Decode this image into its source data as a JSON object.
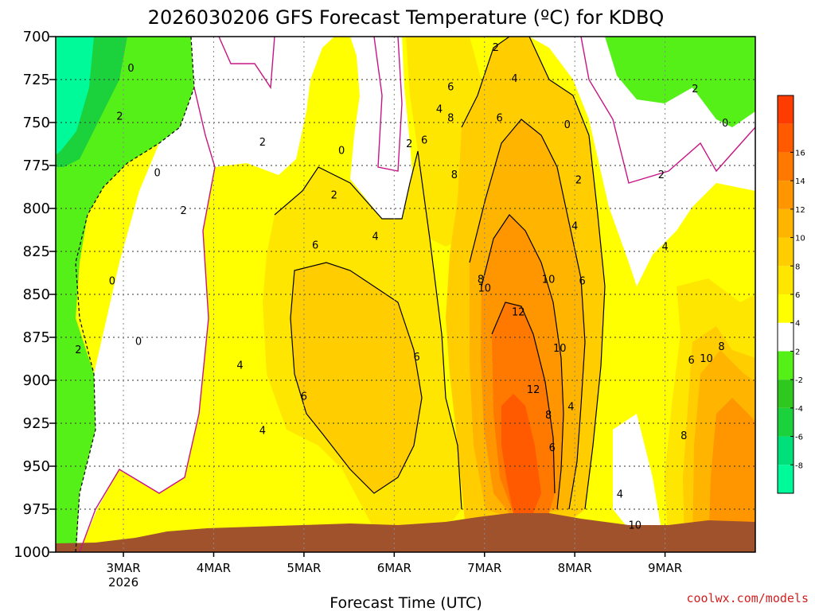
{
  "chart_data": {
    "type": "heatmap",
    "title": "2026030206 GFS Forecast Temperature (ºC) for KDBQ",
    "xlabel": "Forecast Time (UTC)",
    "ylabel": "",
    "y_ticks": [
      "700",
      "725",
      "750",
      "775",
      "800",
      "825",
      "850",
      "875",
      "900",
      "925",
      "950",
      "975",
      "1000"
    ],
    "y_range": [
      700,
      1000
    ],
    "y_inverted": true,
    "x_ticks": [
      {
        "label": "3MAR",
        "sublabel": "2026",
        "time_h": 6
      },
      {
        "label": "4MAR",
        "time_h": 30
      },
      {
        "label": "5MAR",
        "time_h": 54
      },
      {
        "label": "6MAR",
        "time_h": 78
      },
      {
        "label": "7MAR",
        "time_h": 102
      },
      {
        "label": "8MAR",
        "time_h": 126
      },
      {
        "label": "9MAR",
        "time_h": 150
      }
    ],
    "x_range_h": [
      -12,
      174
    ],
    "grid": true,
    "colorbar": {
      "levels": [
        -10,
        -8,
        -6,
        -4,
        -2,
        2,
        4,
        6,
        8,
        10,
        12,
        14,
        16,
        18
      ],
      "colors": [
        "#00fa9a",
        "#00e07a",
        "#1bd23c",
        "#2ec81e",
        "#55f018",
        "#ffffff",
        "#ffff00",
        "#ffe600",
        "#ffcd00",
        "#ffb400",
        "#ff9600",
        "#ff7800",
        "#ff5a00",
        "#ff3c00"
      ],
      "labels": [
        "-8",
        "-6",
        "-4",
        "-2",
        "2",
        "4",
        "6",
        "8",
        "10",
        "12",
        "14",
        "16"
      ]
    },
    "contour_labels": [
      {
        "t": 8,
        "p": 718,
        "v": "0"
      },
      {
        "t": 93,
        "p": 729,
        "v": "6"
      },
      {
        "t": 90,
        "p": 742,
        "v": "4"
      },
      {
        "t": 93,
        "p": 747,
        "v": "8"
      },
      {
        "t": 105,
        "p": 706,
        "v": "2"
      },
      {
        "t": 110,
        "p": 724,
        "v": "4"
      },
      {
        "t": 106,
        "p": 747,
        "v": "6"
      },
      {
        "t": 124,
        "p": 751,
        "v": "0"
      },
      {
        "t": 158,
        "p": 730,
        "v": "2"
      },
      {
        "t": 166,
        "p": 750,
        "v": "0"
      },
      {
        "t": 5,
        "p": 746,
        "v": "2"
      },
      {
        "t": 43,
        "p": 761,
        "v": "2"
      },
      {
        "t": 64,
        "p": 766,
        "v": "0"
      },
      {
        "t": 82,
        "p": 762,
        "v": "2"
      },
      {
        "t": 86,
        "p": 760,
        "v": "6"
      },
      {
        "t": 15,
        "p": 779,
        "v": "0"
      },
      {
        "t": 94,
        "p": 780,
        "v": "8"
      },
      {
        "t": 127,
        "p": 783,
        "v": "2"
      },
      {
        "t": 149,
        "p": 780,
        "v": "2"
      },
      {
        "t": 62,
        "p": 792,
        "v": "2"
      },
      {
        "t": 22,
        "p": 801,
        "v": "2"
      },
      {
        "t": 126,
        "p": 810,
        "v": "4"
      },
      {
        "t": 73,
        "p": 816,
        "v": "4"
      },
      {
        "t": 57,
        "p": 821,
        "v": "6"
      },
      {
        "t": 150,
        "p": 822,
        "v": "4"
      },
      {
        "t": 101,
        "p": 841,
        "v": "8"
      },
      {
        "t": 102,
        "p": 846,
        "v": "10"
      },
      {
        "t": 119,
        "p": 841,
        "v": "10"
      },
      {
        "t": 128,
        "p": 842,
        "v": "6"
      },
      {
        "t": 3,
        "p": 842,
        "v": "0"
      },
      {
        "t": 111,
        "p": 860,
        "v": "12"
      },
      {
        "t": 10,
        "p": 877,
        "v": "0"
      },
      {
        "t": -6,
        "p": 882,
        "v": "2"
      },
      {
        "t": 122,
        "p": 881,
        "v": "10"
      },
      {
        "t": 84,
        "p": 886,
        "v": "6"
      },
      {
        "t": 157,
        "p": 888,
        "v": "6"
      },
      {
        "t": 161,
        "p": 887,
        "v": "10"
      },
      {
        "t": 165,
        "p": 880,
        "v": "8"
      },
      {
        "t": 37,
        "p": 891,
        "v": "4"
      },
      {
        "t": 54,
        "p": 909,
        "v": "6"
      },
      {
        "t": 115,
        "p": 905,
        "v": "12"
      },
      {
        "t": 119,
        "p": 920,
        "v": "8"
      },
      {
        "t": 125,
        "p": 915,
        "v": "4"
      },
      {
        "t": 43,
        "p": 929,
        "v": "4"
      },
      {
        "t": 120,
        "p": 939,
        "v": "6"
      },
      {
        "t": 155,
        "p": 932,
        "v": "8"
      },
      {
        "t": 138,
        "p": 966,
        "v": "4"
      },
      {
        "t": 142,
        "p": 984,
        "v": "10"
      }
    ]
  },
  "credit": "coolwx.com/models"
}
